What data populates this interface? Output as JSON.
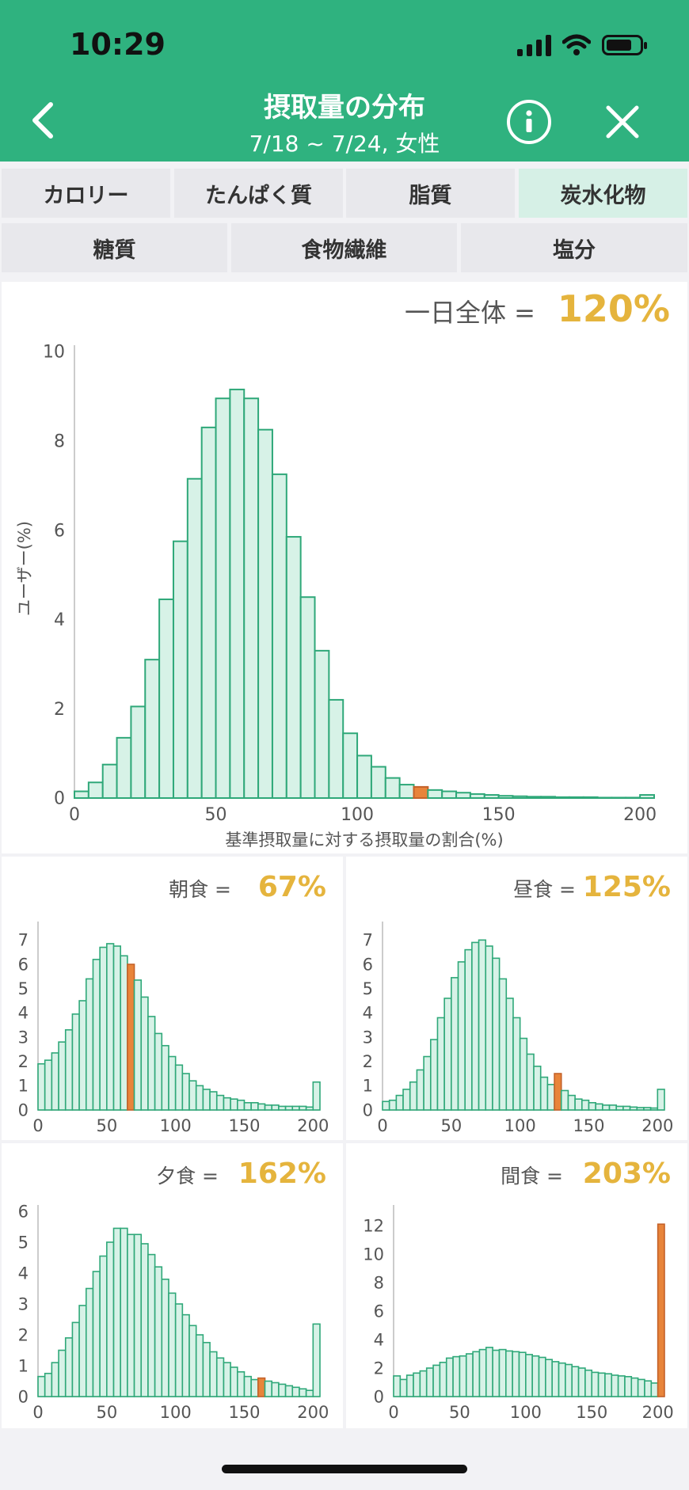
{
  "status": {
    "time": "10:29"
  },
  "header": {
    "title": "摂取量の分布",
    "subtitle": "7/18 ~ 7/24, 女性"
  },
  "tabs_row1": [
    "カロリー",
    "たんぱく質",
    "脂質",
    "炭水化物"
  ],
  "tabs_row2": [
    "糖質",
    "食物繊維",
    "塩分"
  ],
  "active_tab": "炭水化物",
  "colors": {
    "brand": "#2fb27f",
    "bar_fill": "#d7f2e7",
    "bar_stroke": "#2fa879",
    "highlight_fill": "#e8843a",
    "highlight_stroke": "#c4622a",
    "value": "#e5b43d"
  },
  "main_chart": {
    "label": "一日全体 =",
    "value": "120%",
    "ylabel": "ユーザー(%)",
    "xlabel": "基準摂取量に対する摂取量の割合(%)"
  },
  "small_charts": [
    {
      "label": "朝食 =",
      "value": "67%"
    },
    {
      "label": "昼食 =",
      "value": "125%"
    },
    {
      "label": "夕食 =",
      "value": "162%"
    },
    {
      "label": "間食 =",
      "value": "203%"
    }
  ],
  "chart_data": [
    {
      "type": "bar",
      "name": "一日全体",
      "xlabel": "基準摂取量に対する摂取量の割合(%)",
      "ylabel": "ユーザー(%)",
      "xlim": [
        0,
        205
      ],
      "ylim": [
        0,
        10
      ],
      "xticks": [
        0,
        50,
        100,
        150,
        200
      ],
      "yticks": [
        0,
        2,
        4,
        6,
        8,
        10
      ],
      "bin_width": 5,
      "bin_starts": [
        0,
        5,
        10,
        15,
        20,
        25,
        30,
        35,
        40,
        45,
        50,
        55,
        60,
        65,
        70,
        75,
        80,
        85,
        90,
        95,
        100,
        105,
        110,
        115,
        120,
        125,
        130,
        135,
        140,
        145,
        150,
        155,
        160,
        165,
        170,
        175,
        180,
        185,
        190,
        195,
        200
      ],
      "values": [
        0.15,
        0.35,
        0.75,
        1.35,
        2.05,
        3.1,
        4.45,
        5.75,
        7.15,
        8.3,
        8.95,
        9.15,
        8.95,
        8.25,
        7.25,
        5.85,
        4.5,
        3.3,
        2.2,
        1.45,
        0.95,
        0.7,
        0.45,
        0.3,
        0.25,
        0.18,
        0.15,
        0.12,
        0.09,
        0.07,
        0.05,
        0.04,
        0.03,
        0.03,
        0.02,
        0.02,
        0.02,
        0.01,
        0.01,
        0.01,
        0.07
      ],
      "highlight_bin": 120
    },
    {
      "type": "bar",
      "name": "朝食",
      "xlim": [
        0,
        205
      ],
      "ylim": [
        0,
        7.5
      ],
      "xticks": [
        0,
        50,
        100,
        150,
        200
      ],
      "yticks": [
        0,
        1,
        2,
        3,
        4,
        5,
        6,
        7
      ],
      "bin_width": 5,
      "bin_starts": [
        0,
        5,
        10,
        15,
        20,
        25,
        30,
        35,
        40,
        45,
        50,
        55,
        60,
        65,
        70,
        75,
        80,
        85,
        90,
        95,
        100,
        105,
        110,
        115,
        120,
        125,
        130,
        135,
        140,
        145,
        150,
        155,
        160,
        165,
        170,
        175,
        180,
        185,
        190,
        195,
        200
      ],
      "values": [
        1.9,
        2.05,
        2.35,
        2.8,
        3.3,
        3.95,
        4.5,
        5.4,
        6.2,
        6.7,
        6.85,
        6.75,
        6.35,
        6.0,
        5.35,
        4.65,
        3.85,
        3.15,
        2.65,
        2.2,
        1.85,
        1.5,
        1.2,
        1.0,
        0.85,
        0.75,
        0.6,
        0.5,
        0.45,
        0.4,
        0.3,
        0.3,
        0.25,
        0.2,
        0.2,
        0.15,
        0.15,
        0.15,
        0.15,
        0.12,
        1.15
      ],
      "highlight_bin": 65
    },
    {
      "type": "bar",
      "name": "昼食",
      "xlim": [
        0,
        205
      ],
      "ylim": [
        0,
        7.5
      ],
      "xticks": [
        0,
        50,
        100,
        150,
        200
      ],
      "yticks": [
        0,
        1,
        2,
        3,
        4,
        5,
        6,
        7
      ],
      "bin_width": 5,
      "bin_starts": [
        0,
        5,
        10,
        15,
        20,
        25,
        30,
        35,
        40,
        45,
        50,
        55,
        60,
        65,
        70,
        75,
        80,
        85,
        90,
        95,
        100,
        105,
        110,
        115,
        120,
        125,
        130,
        135,
        140,
        145,
        150,
        155,
        160,
        165,
        170,
        175,
        180,
        185,
        190,
        195,
        200
      ],
      "values": [
        0.35,
        0.4,
        0.6,
        0.85,
        1.15,
        1.65,
        2.2,
        2.9,
        3.8,
        4.6,
        5.45,
        6.1,
        6.6,
        6.9,
        7.0,
        6.75,
        6.25,
        5.4,
        4.6,
        3.8,
        2.95,
        2.3,
        1.8,
        1.35,
        1.05,
        1.5,
        0.8,
        0.6,
        0.45,
        0.4,
        0.3,
        0.25,
        0.2,
        0.2,
        0.15,
        0.15,
        0.12,
        0.1,
        0.1,
        0.08,
        0.85
      ],
      "highlight_bin": 125
    },
    {
      "type": "bar",
      "name": "夕食",
      "xlim": [
        0,
        205
      ],
      "ylim": [
        0,
        6
      ],
      "xticks": [
        0,
        50,
        100,
        150,
        200
      ],
      "yticks": [
        0,
        1,
        2,
        3,
        4,
        5,
        6
      ],
      "bin_width": 5,
      "bin_starts": [
        0,
        5,
        10,
        15,
        20,
        25,
        30,
        35,
        40,
        45,
        50,
        55,
        60,
        65,
        70,
        75,
        80,
        85,
        90,
        95,
        100,
        105,
        110,
        115,
        120,
        125,
        130,
        135,
        140,
        145,
        150,
        155,
        160,
        165,
        170,
        175,
        180,
        185,
        190,
        195,
        200
      ],
      "values": [
        0.65,
        0.75,
        1.1,
        1.5,
        1.9,
        2.4,
        2.95,
        3.5,
        4.05,
        4.55,
        5.0,
        5.45,
        5.45,
        5.25,
        5.25,
        4.95,
        4.6,
        4.2,
        3.8,
        3.35,
        3.0,
        2.65,
        2.3,
        2.0,
        1.75,
        1.45,
        1.25,
        1.1,
        0.95,
        0.8,
        0.65,
        0.55,
        0.6,
        0.5,
        0.45,
        0.4,
        0.35,
        0.3,
        0.25,
        0.2,
        2.35
      ],
      "highlight_bin": 160
    },
    {
      "type": "bar",
      "name": "間食",
      "xlim": [
        0,
        205
      ],
      "ylim": [
        0,
        13
      ],
      "xticks": [
        0,
        50,
        100,
        150,
        200
      ],
      "yticks": [
        0,
        2,
        4,
        6,
        8,
        10,
        12
      ],
      "bin_width": 5,
      "bin_starts": [
        0,
        5,
        10,
        15,
        20,
        25,
        30,
        35,
        40,
        45,
        50,
        55,
        60,
        65,
        70,
        75,
        80,
        85,
        90,
        95,
        100,
        105,
        110,
        115,
        120,
        125,
        130,
        135,
        140,
        145,
        150,
        155,
        160,
        165,
        170,
        175,
        180,
        185,
        190,
        195,
        200
      ],
      "values": [
        1.45,
        1.2,
        1.5,
        1.65,
        1.8,
        2.0,
        2.2,
        2.4,
        2.7,
        2.8,
        2.85,
        3.0,
        3.15,
        3.3,
        3.45,
        3.25,
        3.3,
        3.2,
        3.15,
        3.1,
        2.95,
        2.85,
        2.75,
        2.6,
        2.45,
        2.35,
        2.25,
        2.1,
        2.0,
        1.85,
        1.7,
        1.65,
        1.6,
        1.5,
        1.45,
        1.4,
        1.3,
        1.2,
        1.1,
        0.95,
        12.1
      ],
      "highlight_bin": 200
    }
  ]
}
